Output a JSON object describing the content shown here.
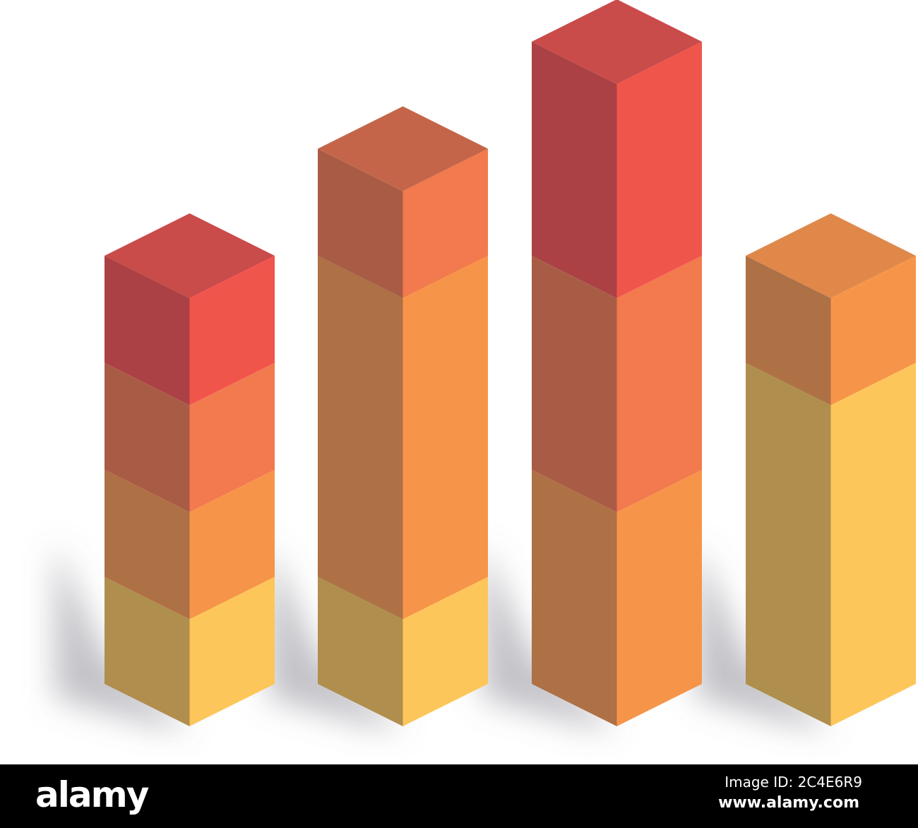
{
  "chart_data": {
    "type": "bar",
    "style": "isometric 3D stacked",
    "title": "",
    "xlabel": "",
    "ylabel": "",
    "grid": false,
    "legend": "none",
    "unit_note_hidden": true,
    "palette": {
      "yellow": {
        "left": "#B08E4E",
        "right": "#FDC65A",
        "top": "#E6AE55"
      },
      "orange": {
        "left": "#AE7045",
        "right": "#F6954A",
        "top": "#E0884A"
      },
      "orange-red": {
        "left": "#A95C45",
        "right": "#F37A4E",
        "top": "#C4654A"
      },
      "red": {
        "left": "#AB4144",
        "right": "#F0554C",
        "top": "#C94B4A"
      }
    },
    "bars": [
      {
        "segments": [
          {
            "color": "yellow",
            "value": 1
          },
          {
            "color": "orange",
            "value": 1
          },
          {
            "color": "orange-red",
            "value": 1
          },
          {
            "color": "red",
            "value": 1
          }
        ]
      },
      {
        "segments": [
          {
            "color": "yellow",
            "value": 1
          },
          {
            "color": "orange",
            "value": 3
          },
          {
            "color": "orange-red",
            "value": 1
          }
        ]
      },
      {
        "segments": [
          {
            "color": "orange",
            "value": 2
          },
          {
            "color": "orange-red",
            "value": 2
          },
          {
            "color": "red",
            "value": 2
          }
        ]
      },
      {
        "segments": [
          {
            "color": "yellow",
            "value": 3
          },
          {
            "color": "orange",
            "value": 1
          }
        ]
      }
    ],
    "ylim": [
      0,
      6
    ]
  },
  "footer": {
    "logo": "alamy",
    "image_id": "Image ID: 2C4E6R9",
    "site": "www.alamy.com"
  }
}
